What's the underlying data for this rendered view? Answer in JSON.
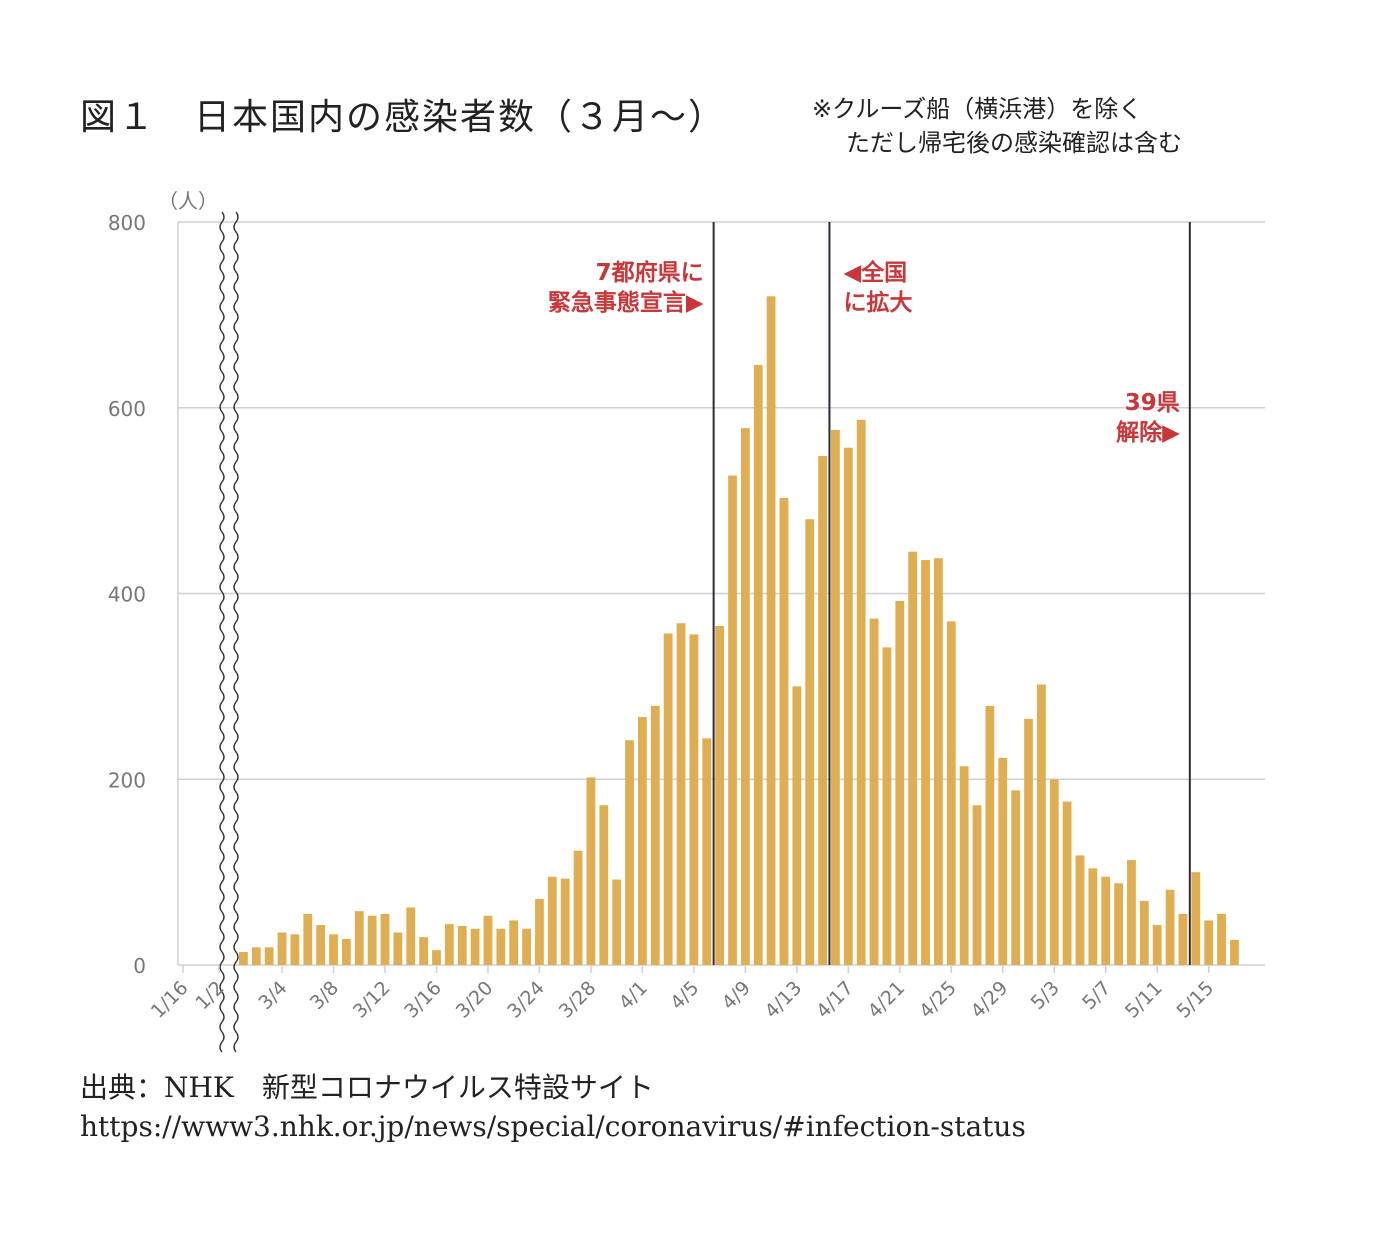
{
  "title": "図１　日本国内の感染者数（３月〜）",
  "note": {
    "line1": "※クルーズ船（横浜港）を除く",
    "line2": "ただし帰宅後の感染確認は含む"
  },
  "source": {
    "line1": "出典：NHK　新型コロナウイルス特設サイト",
    "line2": "https://www3.nhk.or.jp/news/special/coronavirus/#infection-status"
  },
  "colors": {
    "bar": "#e0ae52",
    "annotation": "#c8383a",
    "grid": "#cfcfd8",
    "marker_line": "#2b2b3a",
    "axis_text": "#777777"
  },
  "chart_data": {
    "type": "bar",
    "y_unit": "（人）",
    "ylim": [
      0,
      800
    ],
    "yticks": [
      0,
      200,
      400,
      600,
      800
    ],
    "grid": true,
    "axis_break": true,
    "first_tick_labels": [
      "1/16",
      "1/2"
    ],
    "xtick_labels": [
      "3/4",
      "3/8",
      "3/12",
      "3/16",
      "3/20",
      "3/24",
      "3/28",
      "4/1",
      "4/5",
      "4/9",
      "4/13",
      "4/17",
      "4/21",
      "4/25",
      "4/29",
      "5/3",
      "5/7",
      "5/11",
      "5/15"
    ],
    "start_date": "3/1",
    "values": [
      14,
      19,
      19,
      35,
      33,
      55,
      43,
      33,
      28,
      58,
      53,
      55,
      35,
      62,
      30,
      16,
      44,
      42,
      39,
      53,
      39,
      48,
      39,
      71,
      95,
      93,
      123,
      202,
      172,
      92,
      242,
      267,
      279,
      357,
      368,
      356,
      244,
      365,
      527,
      578,
      646,
      720,
      503,
      300,
      480,
      548,
      576,
      557,
      587,
      373,
      342,
      392,
      445,
      436,
      438,
      370,
      214,
      172,
      279,
      223,
      188,
      265,
      302,
      200,
      176,
      118,
      104,
      95,
      88,
      113,
      69,
      43,
      81,
      55,
      100,
      48,
      55,
      27
    ],
    "annotations": [
      {
        "date": "4/7",
        "lines": [
          "7都府県に",
          "緊急事態宣言▶"
        ],
        "align": "left"
      },
      {
        "date": "4/16",
        "lines": [
          "◀全国",
          "に拡大"
        ],
        "align": "right"
      },
      {
        "date": "5/14",
        "lines": [
          "39県",
          "解除▶"
        ],
        "align": "left"
      }
    ]
  }
}
